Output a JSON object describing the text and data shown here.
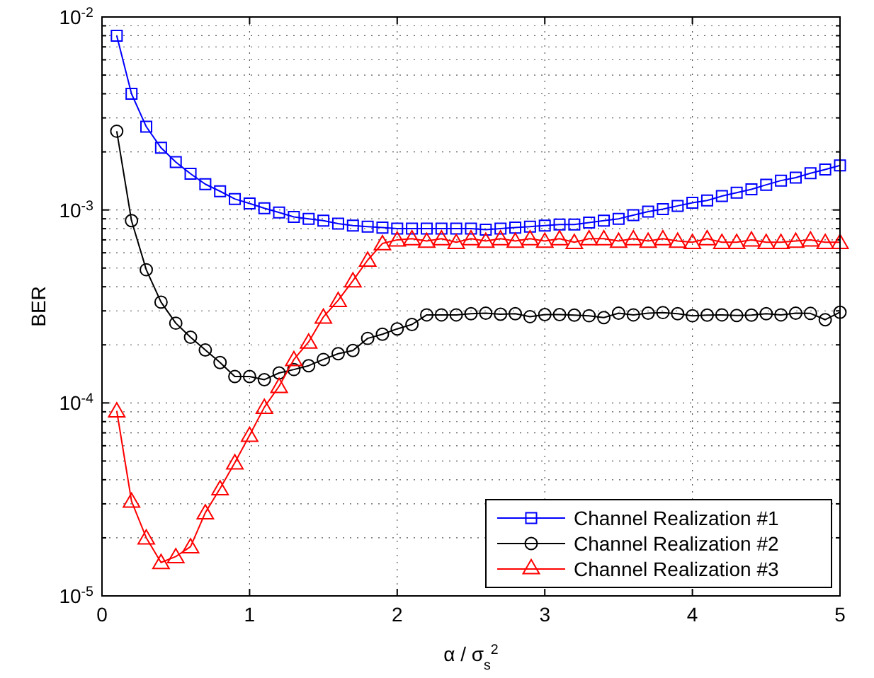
{
  "chart_data": {
    "type": "line",
    "xlabel": "α / σ$_{s}$$^{2}$",
    "ylabel": "BER",
    "log": "y",
    "grid": true,
    "legend": "bottom right",
    "line_style": "solid",
    "xlim": [
      0,
      5
    ],
    "xticks": [
      0,
      1,
      2,
      3,
      4,
      5
    ],
    "ylim": [
      1e-05,
      0.01
    ],
    "yticks": [
      {
        "value": 1e-05,
        "label": "10$^{-5}$"
      },
      {
        "value": 2e-05,
        "label": null
      },
      {
        "value": 3e-05,
        "label": null
      },
      {
        "value": 4e-05,
        "label": null
      },
      {
        "value": 5e-05,
        "label": null
      },
      {
        "value": 6e-05,
        "label": null
      },
      {
        "value": 7e-05,
        "label": null
      },
      {
        "value": 8e-05,
        "label": null
      },
      {
        "value": 9e-05,
        "label": null
      },
      {
        "value": 0.0001,
        "label": "10$^{-4}$"
      },
      {
        "value": 0.0002,
        "label": null
      },
      {
        "value": 0.0003,
        "label": null
      },
      {
        "value": 0.0004,
        "label": null
      },
      {
        "value": 0.0005,
        "label": null
      },
      {
        "value": 0.0006,
        "label": null
      },
      {
        "value": 0.0007,
        "label": null
      },
      {
        "value": 0.0008,
        "label": null
      },
      {
        "value": 0.0009,
        "label": null
      },
      {
        "value": 0.001,
        "label": "10$^{-3}$"
      },
      {
        "value": 0.002,
        "label": null
      },
      {
        "value": 0.003,
        "label": null
      },
      {
        "value": 0.004,
        "label": null
      },
      {
        "value": 0.005,
        "label": null
      },
      {
        "value": 0.006,
        "label": null
      },
      {
        "value": 0.007,
        "label": null
      },
      {
        "value": 0.008,
        "label": null
      },
      {
        "value": 0.009,
        "label": null
      },
      {
        "value": 0.01,
        "label": "10$^{-2}$"
      }
    ],
    "x": [
      0.1,
      0.2,
      0.3,
      0.4,
      0.5,
      0.6,
      0.7,
      0.8,
      0.9,
      1.0,
      1.1,
      1.2,
      1.3,
      1.4,
      1.5,
      1.6,
      1.7,
      1.8,
      1.9,
      2.0,
      2.1,
      2.2,
      2.3,
      2.4,
      2.5,
      2.6,
      2.7,
      2.8,
      2.9,
      3.0,
      3.1,
      3.2,
      3.3,
      3.4,
      3.5,
      3.6,
      3.7,
      3.8,
      3.9,
      4.0,
      4.1,
      4.2,
      4.3,
      4.4,
      4.5,
      4.6,
      4.7,
      4.8,
      4.9,
      5.0
    ],
    "series": [
      {
        "name": "Channel Realization #1",
        "color": "#0000ff",
        "marker": "square",
        "values": [
          0.008,
          0.004,
          0.0027,
          0.0021,
          0.00177,
          0.00154,
          0.00136,
          0.00125,
          0.00114,
          0.00108,
          0.00102,
          0.00097,
          0.00092,
          0.0009,
          0.00088,
          0.00085,
          0.00083,
          0.00082,
          0.00081,
          0.0008,
          0.0008,
          0.0008,
          0.0008,
          0.0008,
          0.0008,
          0.00079,
          0.0008,
          0.00081,
          0.00082,
          0.00083,
          0.00084,
          0.00084,
          0.00086,
          0.00088,
          0.0009,
          0.00094,
          0.00098,
          0.00101,
          0.00105,
          0.00109,
          0.00112,
          0.00118,
          0.00123,
          0.00128,
          0.00135,
          0.00142,
          0.00147,
          0.00155,
          0.00162,
          0.0017
        ]
      },
      {
        "name": "Channel Realization #2",
        "color": "#000000",
        "marker": "circle",
        "values": [
          0.00256,
          0.00088,
          0.00049,
          0.000333,
          0.000259,
          0.000219,
          0.000188,
          0.000162,
          0.000137,
          0.000137,
          0.000132,
          0.000143,
          0.000149,
          0.000156,
          0.000168,
          0.00018,
          0.000187,
          0.000216,
          0.000227,
          0.000242,
          0.000255,
          0.000286,
          0.000286,
          0.000286,
          0.00029,
          0.000292,
          0.000288,
          0.00029,
          0.00028,
          0.000287,
          0.000287,
          0.000285,
          0.000283,
          0.000277,
          0.000292,
          0.000286,
          0.000292,
          0.000294,
          0.00029,
          0.000283,
          0.000285,
          0.000286,
          0.000284,
          0.000285,
          0.00029,
          0.000286,
          0.000292,
          0.000291,
          0.00027,
          0.000295
        ]
      },
      {
        "name": "Channel Realization #3",
        "color": "#ff0000",
        "marker": "triangle",
        "values": [
          9.1e-05,
          3.1e-05,
          2e-05,
          1.49e-05,
          1.6e-05,
          1.8e-05,
          2.7e-05,
          3.6e-05,
          4.9e-05,
          6.8e-05,
          9.5e-05,
          0.000122,
          0.000168,
          0.000207,
          0.000279,
          0.00034,
          0.00043,
          0.00055,
          0.00067,
          0.0007,
          0.00071,
          0.00069,
          0.00071,
          0.00068,
          0.00071,
          0.00069,
          0.00071,
          0.00069,
          0.00071,
          0.00069,
          0.00071,
          0.00068,
          0.00071,
          0.00071,
          0.00069,
          0.00071,
          0.00069,
          0.00071,
          0.00069,
          0.00068,
          0.00071,
          0.00068,
          0.00068,
          0.0007,
          0.00068,
          0.00068,
          0.00069,
          0.0007,
          0.00068,
          0.00068
        ]
      }
    ]
  }
}
